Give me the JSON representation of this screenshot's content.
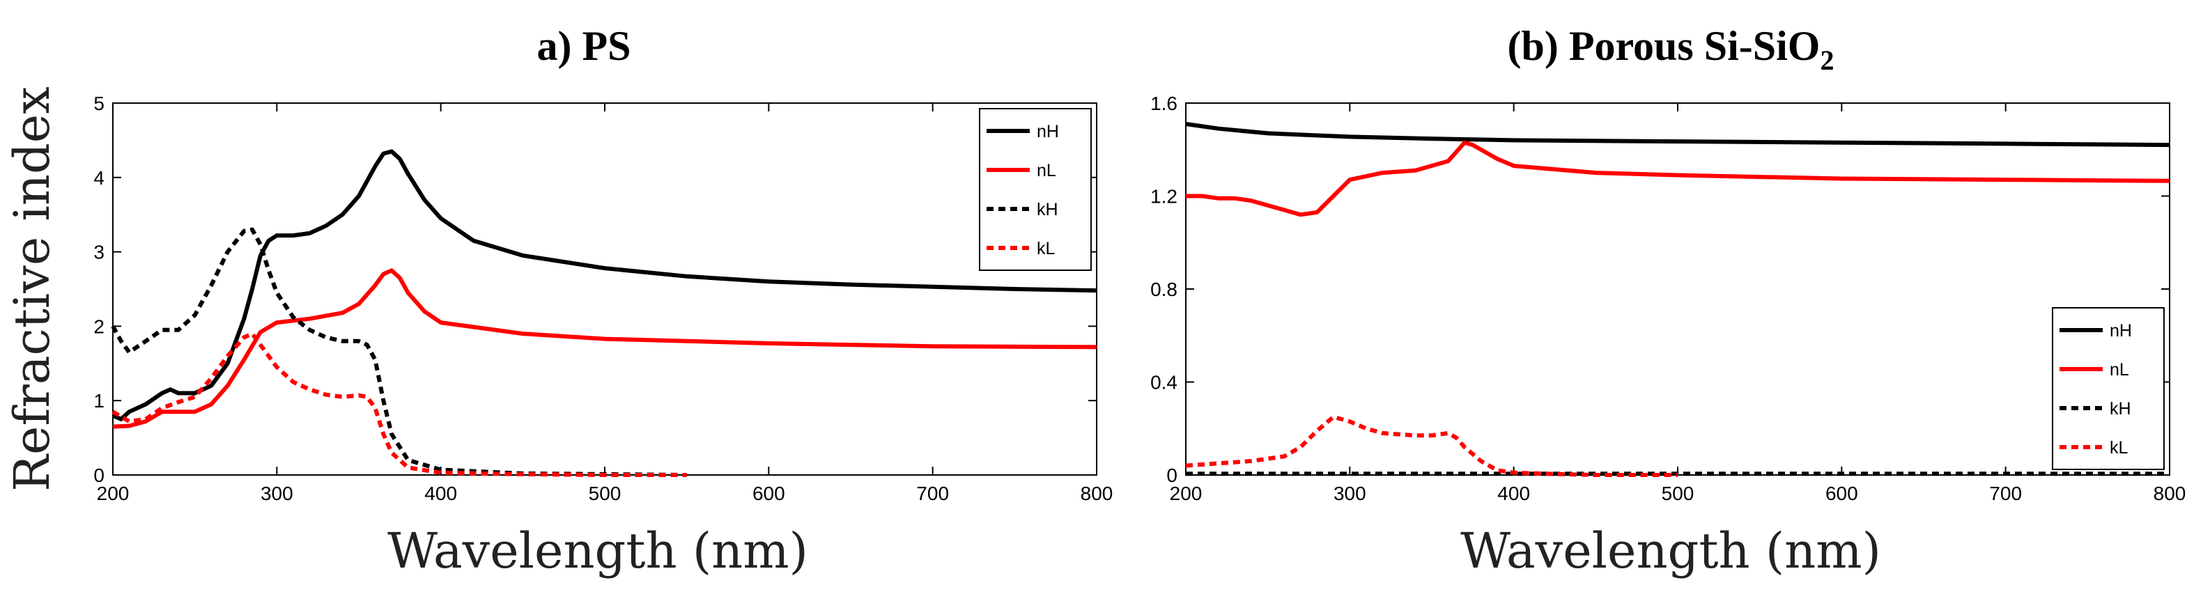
{
  "figure": {
    "ylabel_shared": "Refractive index"
  },
  "chart_data": [
    {
      "type": "line",
      "title": "a) PS",
      "xlabel": "Wavelength (nm)",
      "ylabel": "Refractive index",
      "xlim": [
        200,
        800
      ],
      "ylim": [
        0,
        5
      ],
      "xticks": [
        200,
        300,
        400,
        500,
        600,
        700,
        800
      ],
      "yticks": [
        0,
        1,
        2,
        3,
        4,
        5
      ],
      "legend_position": "top-right",
      "grid": false,
      "series": [
        {
          "name": "nH",
          "color": "#000000",
          "style": "solid",
          "x": [
            200,
            205,
            210,
            220,
            230,
            235,
            240,
            250,
            260,
            270,
            280,
            285,
            290,
            295,
            300,
            310,
            320,
            330,
            340,
            350,
            355,
            360,
            365,
            370,
            375,
            380,
            390,
            400,
            420,
            450,
            500,
            550,
            600,
            650,
            700,
            750,
            800
          ],
          "y": [
            0.8,
            0.75,
            0.85,
            0.95,
            1.1,
            1.15,
            1.1,
            1.1,
            1.2,
            1.5,
            2.1,
            2.5,
            2.95,
            3.15,
            3.22,
            3.22,
            3.25,
            3.35,
            3.5,
            3.75,
            3.95,
            4.15,
            4.32,
            4.35,
            4.25,
            4.05,
            3.7,
            3.45,
            3.15,
            2.95,
            2.78,
            2.67,
            2.6,
            2.56,
            2.53,
            2.5,
            2.48
          ]
        },
        {
          "name": "nL",
          "color": "#ff0000",
          "style": "solid",
          "x": [
            200,
            210,
            220,
            230,
            240,
            250,
            260,
            270,
            280,
            290,
            300,
            320,
            340,
            350,
            360,
            365,
            370,
            375,
            380,
            390,
            400,
            450,
            500,
            600,
            700,
            800
          ],
          "y": [
            0.65,
            0.66,
            0.72,
            0.85,
            0.85,
            0.85,
            0.95,
            1.2,
            1.55,
            1.92,
            2.05,
            2.1,
            2.18,
            2.3,
            2.55,
            2.7,
            2.75,
            2.65,
            2.45,
            2.2,
            2.05,
            1.9,
            1.83,
            1.77,
            1.73,
            1.72
          ]
        },
        {
          "name": "kH",
          "color": "#000000",
          "style": "dashed",
          "x": [
            200,
            205,
            210,
            220,
            230,
            240,
            250,
            260,
            270,
            280,
            285,
            290,
            295,
            300,
            310,
            320,
            330,
            340,
            350,
            355,
            360,
            365,
            370,
            380,
            400,
            450,
            500,
            550
          ],
          "y": [
            2.0,
            1.8,
            1.65,
            1.8,
            1.95,
            1.95,
            2.15,
            2.55,
            3.0,
            3.28,
            3.3,
            3.1,
            2.75,
            2.45,
            2.12,
            1.95,
            1.85,
            1.8,
            1.8,
            1.75,
            1.55,
            1.0,
            0.55,
            0.2,
            0.07,
            0.02,
            0.01,
            0.0
          ]
        },
        {
          "name": "kL",
          "color": "#ff0000",
          "style": "dashed",
          "x": [
            200,
            210,
            220,
            230,
            240,
            250,
            260,
            270,
            280,
            285,
            290,
            300,
            310,
            320,
            330,
            340,
            350,
            355,
            360,
            365,
            370,
            380,
            400,
            450,
            500,
            550
          ],
          "y": [
            0.85,
            0.72,
            0.75,
            0.9,
            0.98,
            1.05,
            1.3,
            1.6,
            1.85,
            1.9,
            1.75,
            1.45,
            1.25,
            1.15,
            1.08,
            1.05,
            1.07,
            1.05,
            0.9,
            0.55,
            0.3,
            0.1,
            0.03,
            0.01,
            0.0,
            0.0
          ]
        }
      ]
    },
    {
      "type": "line",
      "title": "(b) Porous Si-SiO",
      "title_subscript": "2",
      "xlabel": "Wavelength (nm)",
      "xlim": [
        200,
        800
      ],
      "ylim": [
        0,
        1.6
      ],
      "xticks": [
        200,
        300,
        400,
        500,
        600,
        700,
        800
      ],
      "yticks": [
        0,
        0.4,
        0.8,
        1.2,
        1.6
      ],
      "ytick_labels": [
        "0",
        "0.4",
        "0.8",
        "1.2",
        "1.6"
      ],
      "legend_position": "bottom-right",
      "grid": false,
      "series": [
        {
          "name": "nH",
          "color": "#000000",
          "style": "solid",
          "x": [
            200,
            220,
            250,
            300,
            350,
            400,
            500,
            600,
            700,
            800
          ],
          "y": [
            1.51,
            1.49,
            1.47,
            1.455,
            1.447,
            1.44,
            1.435,
            1.43,
            1.425,
            1.42
          ]
        },
        {
          "name": "nL",
          "color": "#ff0000",
          "style": "solid",
          "x": [
            200,
            210,
            220,
            230,
            240,
            250,
            260,
            270,
            280,
            290,
            300,
            320,
            340,
            360,
            365,
            370,
            375,
            380,
            390,
            400,
            450,
            500,
            600,
            700,
            800
          ],
          "y": [
            1.2,
            1.2,
            1.19,
            1.19,
            1.18,
            1.16,
            1.14,
            1.12,
            1.13,
            1.2,
            1.27,
            1.3,
            1.31,
            1.35,
            1.39,
            1.43,
            1.42,
            1.4,
            1.36,
            1.33,
            1.3,
            1.29,
            1.275,
            1.27,
            1.265
          ]
        },
        {
          "name": "kH",
          "color": "#000000",
          "style": "dashed",
          "x": [
            200,
            400,
            600,
            800
          ],
          "y": [
            0.005,
            0.005,
            0.005,
            0.005
          ]
        },
        {
          "name": "kL",
          "color": "#ff0000",
          "style": "dashed",
          "x": [
            200,
            220,
            240,
            260,
            270,
            280,
            290,
            300,
            310,
            320,
            340,
            350,
            360,
            365,
            370,
            380,
            390,
            400,
            420,
            450,
            500
          ],
          "y": [
            0.04,
            0.05,
            0.06,
            0.08,
            0.12,
            0.19,
            0.25,
            0.23,
            0.2,
            0.18,
            0.17,
            0.17,
            0.18,
            0.16,
            0.12,
            0.06,
            0.02,
            0.01,
            0.005,
            0.0,
            0.0
          ]
        }
      ]
    }
  ]
}
